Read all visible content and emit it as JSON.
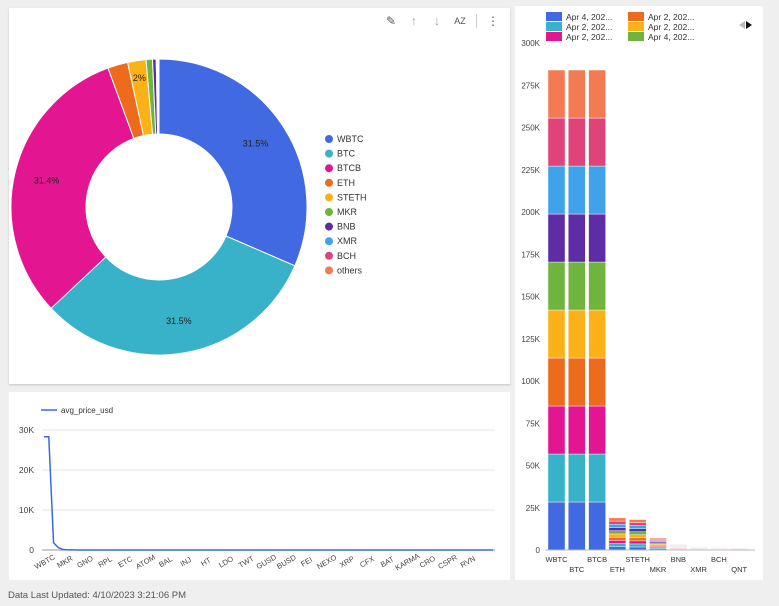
{
  "toolbar": {
    "icons": [
      "pencil-icon",
      "arrow-up-icon",
      "arrow-down-icon",
      "sort-az-icon",
      "more-vert-icon"
    ],
    "glyph_edit": "✎",
    "glyph_up": "↑",
    "glyph_down": "↓",
    "glyph_sort": "AZ",
    "glyph_more": "⋮"
  },
  "footer": {
    "text": "Data Last Updated: 4/10/2023 3:21:06 PM"
  },
  "chart_data": [
    {
      "type": "pie",
      "variant": "donut",
      "labels": [
        "WBTC",
        "BTC",
        "BTCB",
        "ETH",
        "STETH",
        "MKR",
        "BNB",
        "XMR",
        "BCH",
        "others"
      ],
      "values": [
        31.5,
        31.5,
        31.4,
        2.2,
        2.0,
        0.7,
        0.4,
        0.1,
        0.1,
        0.1
      ],
      "colors": [
        "#4169e1",
        "#38b2c9",
        "#e31591",
        "#ec6b1d",
        "#fbb117",
        "#6fb43f",
        "#5e2ca5",
        "#40a2ea",
        "#e0437a",
        "#f47a54"
      ],
      "data_labels": [
        {
          "index": 0,
          "text": "31.5%"
        },
        {
          "index": 1,
          "text": "31.5%"
        },
        {
          "index": 2,
          "text": "31.4%"
        },
        {
          "index": 4,
          "text": "2%"
        }
      ],
      "legend_placement": "right"
    },
    {
      "type": "line",
      "series": [
        {
          "name": "avg_price_usd",
          "color": "#3b67e3",
          "values": [
            28300,
            28300,
            1800,
            600,
            120,
            40,
            20,
            10,
            10,
            8,
            6,
            5,
            4,
            3,
            2,
            1,
            1,
            1,
            1,
            1,
            1,
            1,
            1,
            1,
            1,
            1,
            1,
            1,
            1,
            1,
            1,
            1,
            1,
            1,
            1,
            1,
            1,
            1,
            1,
            1,
            1,
            1,
            1,
            1,
            1,
            1,
            1,
            1,
            1,
            1,
            1,
            1,
            1,
            1,
            1,
            1,
            1,
            1,
            1,
            1,
            1,
            1,
            1,
            1,
            1,
            1,
            1,
            1,
            1,
            1,
            1,
            1,
            1,
            1,
            1,
            1,
            1,
            1,
            1,
            1,
            1,
            1,
            1,
            1,
            1,
            1,
            1,
            1,
            1,
            1,
            1,
            1,
            1,
            1,
            1
          ]
        }
      ],
      "x_tick_labels": [
        "WBTC",
        "MKR",
        "GNO",
        "RPL",
        "ETC",
        "ATOM",
        "BAL",
        "INJ",
        "HT",
        "LDO",
        "TWT",
        "GUSD",
        "BUSD",
        "FEI",
        "NEXO",
        "XRP",
        "CFX",
        "BAT",
        "KARMA",
        "CRO",
        "CSPR",
        "RVN"
      ],
      "y_ticks": [
        0,
        10000,
        20000,
        30000
      ],
      "y_tick_labels": [
        "0",
        "10K",
        "20K",
        "30K"
      ],
      "ylim": [
        0,
        30000
      ],
      "grid": true,
      "legend_placement": "top-left"
    },
    {
      "type": "bar",
      "stacked": true,
      "categories": [
        "WBTC",
        "BTC",
        "BTCB",
        "ETH",
        "STETH",
        "MKR",
        "BNB",
        "XMR",
        "BCH",
        "QNT"
      ],
      "series": [
        {
          "name": "Apr 4, 202...",
          "color": "#4169e1",
          "values": [
            28400,
            28400,
            28400,
            1900,
            1800,
            700,
            320,
            160,
            130,
            120
          ]
        },
        {
          "name": "Apr 2, 202...",
          "color": "#38b2c9",
          "values": [
            28400,
            28400,
            28400,
            1900,
            1800,
            700,
            320,
            160,
            130,
            120
          ]
        },
        {
          "name": "Apr 2, 202...",
          "color": "#e31591",
          "values": [
            28400,
            28400,
            28400,
            1900,
            1800,
            700,
            320,
            160,
            130,
            120
          ]
        },
        {
          "name": "Apr 2, 202...",
          "color": "#ec6b1d",
          "values": [
            28400,
            28400,
            28400,
            1900,
            1800,
            700,
            320,
            160,
            130,
            120
          ]
        },
        {
          "name": "Apr 2, 202...",
          "color": "#fbb117",
          "values": [
            28400,
            28400,
            28400,
            1900,
            1800,
            700,
            320,
            160,
            130,
            120
          ]
        },
        {
          "name": "Apr 4, 202...",
          "color": "#6fb43f",
          "values": [
            28400,
            28400,
            28400,
            1900,
            1800,
            700,
            320,
            160,
            130,
            120
          ]
        },
        {
          "color": "#5e2ca5",
          "values": [
            28400,
            28400,
            28400,
            1900,
            1800,
            700,
            320,
            160,
            130,
            120
          ]
        },
        {
          "color": "#40a2ea",
          "values": [
            28400,
            28400,
            28400,
            1900,
            1800,
            700,
            320,
            160,
            130,
            120
          ]
        },
        {
          "color": "#e0437a",
          "values": [
            28400,
            28400,
            28400,
            1900,
            1800,
            700,
            320,
            160,
            130,
            120
          ]
        },
        {
          "color": "#f47a54",
          "values": [
            28400,
            28400,
            28400,
            1900,
            1800,
            700,
            320,
            160,
            130,
            120
          ]
        }
      ],
      "y_ticks": [
        0,
        25000,
        50000,
        75000,
        100000,
        125000,
        150000,
        175000,
        200000,
        225000,
        250000,
        275000,
        300000
      ],
      "y_tick_labels": [
        "0",
        "25K",
        "50K",
        "75K",
        "100K",
        "125K",
        "150K",
        "175K",
        "200K",
        "225K",
        "250K",
        "275K",
        "300K"
      ],
      "ylim": [
        0,
        300000
      ],
      "grid": false,
      "legend_placement": "top",
      "legend_shown": [
        {
          "text": "Apr 4, 202...",
          "color": "#4169e1"
        },
        {
          "text": "Apr 2, 202...",
          "color": "#38b2c9"
        },
        {
          "text": "Apr 2, 202...",
          "color": "#e31591"
        },
        {
          "text": "Apr 2, 202...",
          "color": "#ec6b1d"
        },
        {
          "text": "Apr 2, 202...",
          "color": "#fbb117"
        },
        {
          "text": "Apr 4, 202...",
          "color": "#6fb43f"
        }
      ]
    }
  ]
}
